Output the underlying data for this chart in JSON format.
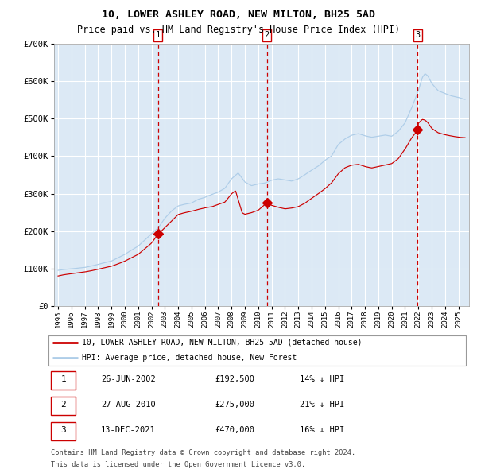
{
  "title": "10, LOWER ASHLEY ROAD, NEW MILTON, BH25 5AD",
  "subtitle": "Price paid vs. HM Land Registry's House Price Index (HPI)",
  "legend_line1": "10, LOWER ASHLEY ROAD, NEW MILTON, BH25 5AD (detached house)",
  "legend_line2": "HPI: Average price, detached house, New Forest",
  "transactions": [
    {
      "num": 1,
      "date": "26-JUN-2002",
      "price": 192500,
      "pct": "14%",
      "dir": "↓"
    },
    {
      "num": 2,
      "date": "27-AUG-2010",
      "price": 275000,
      "pct": "21%",
      "dir": "↓"
    },
    {
      "num": 3,
      "date": "13-DEC-2021",
      "price": 470000,
      "pct": "16%",
      "dir": "↓"
    }
  ],
  "transaction_dates_decimal": [
    2002.48,
    2010.65,
    2021.95
  ],
  "transaction_prices": [
    192500,
    275000,
    470000
  ],
  "footnote1": "Contains HM Land Registry data © Crown copyright and database right 2024.",
  "footnote2": "This data is licensed under the Open Government Licence v3.0.",
  "hpi_color": "#aecde8",
  "price_color": "#cc0000",
  "dot_color": "#cc0000",
  "background_color": "#dce9f5",
  "grid_color": "#ffffff",
  "dashed_line_color": "#cc0000",
  "ylim": [
    0,
    700000
  ],
  "xmin": 1994.7,
  "xmax": 2025.8,
  "hpi_anchors": {
    "1995.0": 95000,
    "1996.0": 100000,
    "1997.0": 105000,
    "1998.0": 113000,
    "1999.0": 122000,
    "2000.0": 140000,
    "2001.0": 162000,
    "2002.0": 195000,
    "2002.5": 210000,
    "2003.0": 235000,
    "2003.5": 255000,
    "2004.0": 268000,
    "2005.0": 275000,
    "2005.5": 285000,
    "2006.0": 290000,
    "2006.5": 298000,
    "2007.0": 305000,
    "2007.5": 315000,
    "2008.0": 340000,
    "2008.5": 355000,
    "2009.0": 330000,
    "2009.5": 320000,
    "2010.0": 325000,
    "2010.5": 328000,
    "2011.0": 335000,
    "2011.5": 338000,
    "2012.0": 335000,
    "2012.5": 332000,
    "2013.0": 338000,
    "2013.5": 348000,
    "2014.0": 360000,
    "2014.5": 372000,
    "2015.0": 388000,
    "2015.5": 400000,
    "2016.0": 430000,
    "2016.5": 445000,
    "2017.0": 455000,
    "2017.5": 460000,
    "2018.0": 455000,
    "2018.5": 452000,
    "2019.0": 455000,
    "2019.5": 458000,
    "2020.0": 455000,
    "2020.5": 468000,
    "2021.0": 490000,
    "2021.5": 530000,
    "2022.0": 575000,
    "2022.3": 610000,
    "2022.5": 620000,
    "2022.7": 615000,
    "2023.0": 595000,
    "2023.5": 575000,
    "2024.0": 568000,
    "2024.5": 562000,
    "2025.0": 558000,
    "2025.5": 552000
  },
  "price_anchors": {
    "1995.0": 80000,
    "1996.0": 87000,
    "1997.0": 93000,
    "1998.0": 100000,
    "1999.0": 108000,
    "2000.0": 122000,
    "2001.0": 140000,
    "2002.0": 170000,
    "2002.48": 192500,
    "2003.0": 210000,
    "2003.5": 228000,
    "2004.0": 245000,
    "2005.0": 253000,
    "2005.5": 258000,
    "2006.0": 262000,
    "2006.5": 265000,
    "2007.0": 272000,
    "2007.5": 278000,
    "2008.0": 300000,
    "2008.3": 308000,
    "2008.8": 248000,
    "2009.0": 244000,
    "2009.5": 248000,
    "2010.0": 255000,
    "2010.65": 275000,
    "2011.0": 268000,
    "2011.5": 262000,
    "2012.0": 258000,
    "2012.5": 260000,
    "2013.0": 264000,
    "2013.5": 272000,
    "2014.0": 285000,
    "2014.5": 298000,
    "2015.0": 312000,
    "2015.5": 328000,
    "2016.0": 352000,
    "2016.5": 368000,
    "2017.0": 375000,
    "2017.5": 378000,
    "2018.0": 373000,
    "2018.5": 370000,
    "2019.0": 374000,
    "2019.5": 378000,
    "2020.0": 382000,
    "2020.5": 395000,
    "2021.0": 420000,
    "2021.5": 450000,
    "2021.95": 470000,
    "2022.0": 488000,
    "2022.3": 498000,
    "2022.5": 496000,
    "2022.7": 490000,
    "2023.0": 475000,
    "2023.5": 463000,
    "2024.0": 458000,
    "2024.5": 455000,
    "2025.0": 452000,
    "2025.5": 450000
  }
}
